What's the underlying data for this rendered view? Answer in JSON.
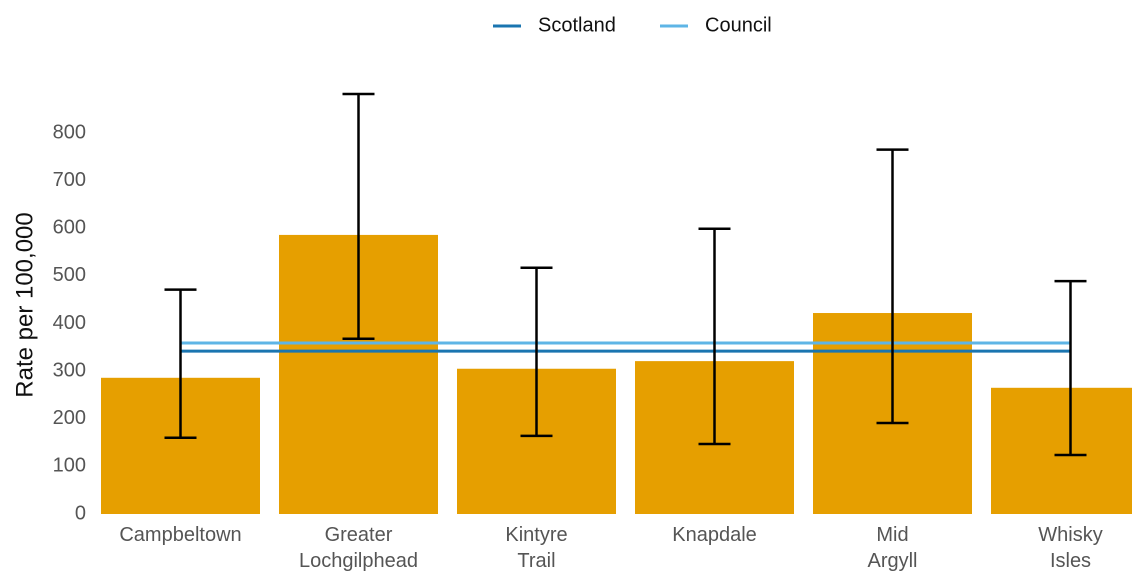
{
  "chart_data": {
    "type": "bar",
    "y_label": "Rate per 100,000",
    "categories": [
      "Campbeltown",
      "Greater Lochgilphead",
      "Kintyre Trail",
      "Knapdale",
      "Mid Argyll",
      "Whisky Isles"
    ],
    "values": [
      286,
      586,
      305,
      321,
      422,
      265
    ],
    "ci_lower": [
      160,
      368,
      164,
      147,
      191,
      124
    ],
    "ci_upper": [
      471,
      882,
      517,
      599,
      765,
      489
    ],
    "color": "#e69f00",
    "reference_lines": [
      {
        "name": "Scotland",
        "value": 342,
        "color": "#1a75b0"
      },
      {
        "name": "Council",
        "value": 359,
        "color": "#5eb5e6"
      }
    ],
    "legend": "top",
    "ylim": [
      0,
      880
    ],
    "yticks": [
      0,
      100,
      200,
      300,
      400,
      500,
      600,
      700,
      800
    ],
    "grid": false
  }
}
